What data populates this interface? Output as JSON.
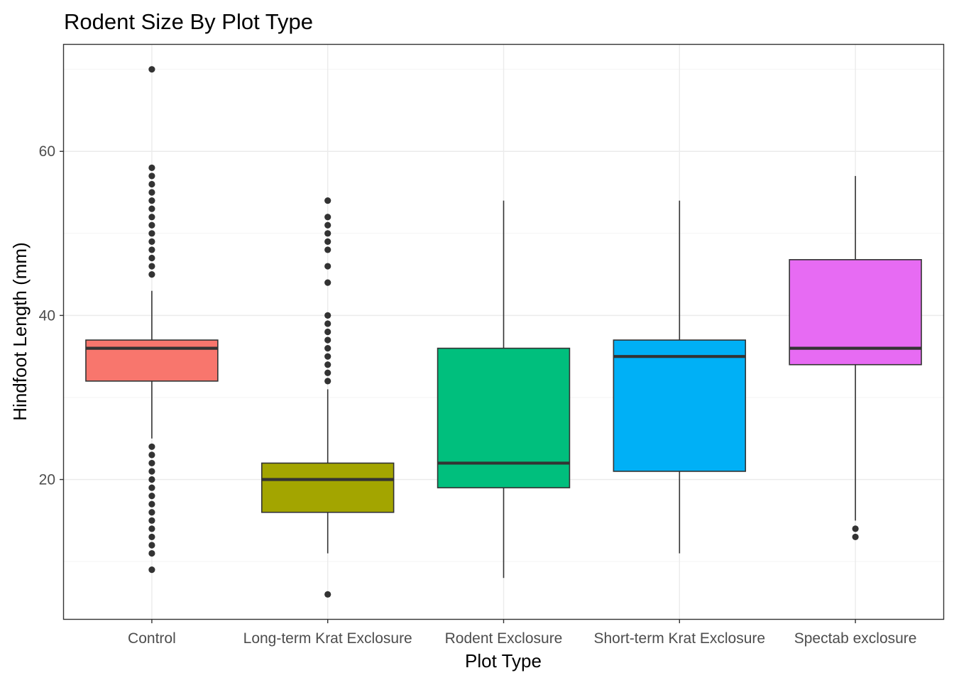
{
  "chart_data": {
    "type": "boxplot",
    "title": "Rodent Size By Plot Type",
    "xlabel": "Plot Type",
    "ylabel": "Hindfoot Length (mm)",
    "ylim": [
      3,
      73
    ],
    "yticks": [
      20,
      40,
      60
    ],
    "grid": true,
    "legend": "none",
    "categories": [
      "Control",
      "Long-term Krat Exclosure",
      "Rodent Exclosure",
      "Short-term Krat Exclosure",
      "Spectab exclosure"
    ],
    "series": [
      {
        "category": "Control",
        "color": "#F8766D",
        "whisker_low": 25,
        "q1": 32,
        "median": 36,
        "q3": 37,
        "whisker_high": 43,
        "outliers": [
          9,
          11,
          12,
          13,
          14,
          15,
          16,
          17,
          18,
          19,
          20,
          21,
          22,
          23,
          24,
          45,
          46,
          47,
          48,
          49,
          50,
          51,
          52,
          53,
          54,
          55,
          56,
          57,
          58,
          70
        ]
      },
      {
        "category": "Long-term Krat Exclosure",
        "color": "#A3A500",
        "whisker_low": 11,
        "q1": 16,
        "median": 20,
        "q3": 22,
        "whisker_high": 31,
        "outliers": [
          6,
          32,
          33,
          34,
          35,
          36,
          37,
          38,
          39,
          40,
          44,
          46,
          48,
          49,
          50,
          51,
          52,
          54
        ]
      },
      {
        "category": "Rodent Exclosure",
        "color": "#00BF7D",
        "whisker_low": 8,
        "q1": 19,
        "median": 22,
        "q3": 36,
        "whisker_high": 54,
        "outliers": []
      },
      {
        "category": "Short-term Krat Exclosure",
        "color": "#00B0F6",
        "whisker_low": 11,
        "q1": 21,
        "median": 35,
        "q3": 37,
        "whisker_high": 54,
        "outliers": []
      },
      {
        "category": "Spectab exclosure",
        "color": "#E76BF3",
        "whisker_low": 15,
        "q1": 34,
        "median": 36,
        "q3": 46.8,
        "whisker_high": 57,
        "outliers": [
          13,
          14
        ]
      }
    ]
  }
}
